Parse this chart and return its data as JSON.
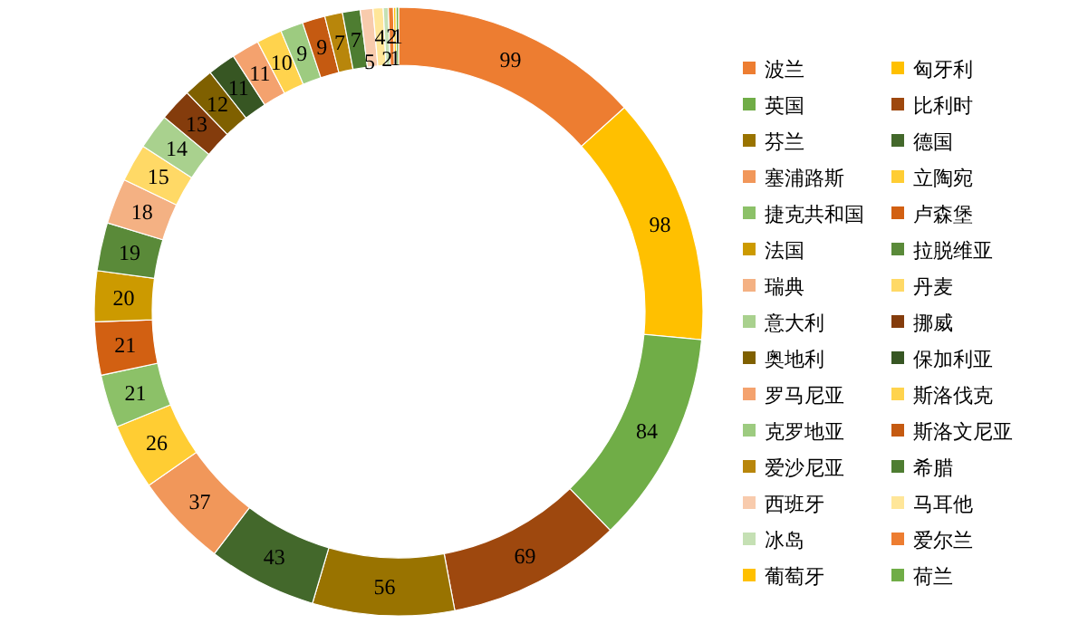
{
  "chart_data": {
    "type": "donut",
    "legend": "right",
    "data_labels": true,
    "categories": [
      "波兰",
      "匈牙利",
      "英国",
      "比利时",
      "芬兰",
      "德国",
      "塞浦路斯",
      "立陶宛",
      "捷克共和国",
      "卢森堡",
      "法国",
      "拉脱维亚",
      "瑞典",
      "丹麦",
      "意大利",
      "挪威",
      "奥地利",
      "保加利亚",
      "罗马尼亚",
      "斯洛伐克",
      "克罗地亚",
      "斯洛文尼亚",
      "爱沙尼亚",
      "希腊",
      "西班牙",
      "马耳他",
      "冰岛",
      "爱尔兰",
      "葡萄牙",
      "荷兰"
    ],
    "values": [
      99,
      98,
      84,
      69,
      56,
      43,
      37,
      26,
      21,
      21,
      20,
      19,
      18,
      15,
      14,
      13,
      12,
      11,
      11,
      10,
      9,
      9,
      7,
      7,
      5,
      4,
      2,
      2,
      1,
      1
    ],
    "colors": [
      "#ed7d31",
      "#ffc000",
      "#70ad47",
      "#9e480e",
      "#997300",
      "#43682b",
      "#f1975a",
      "#ffcd33",
      "#8cc168",
      "#d26012",
      "#cc9a00",
      "#5a8a39",
      "#f4b183",
      "#ffd966",
      "#a9d18e",
      "#843c0c",
      "#7f6000",
      "#375623",
      "#f4a26e",
      "#ffd34d",
      "#9dcb80",
      "#c55a11",
      "#b8860b",
      "#4e7d31",
      "#f8cbad",
      "#ffe699",
      "#c5e0b4",
      "#ed7d31",
      "#ffc000",
      "#70ad47"
    ]
  }
}
